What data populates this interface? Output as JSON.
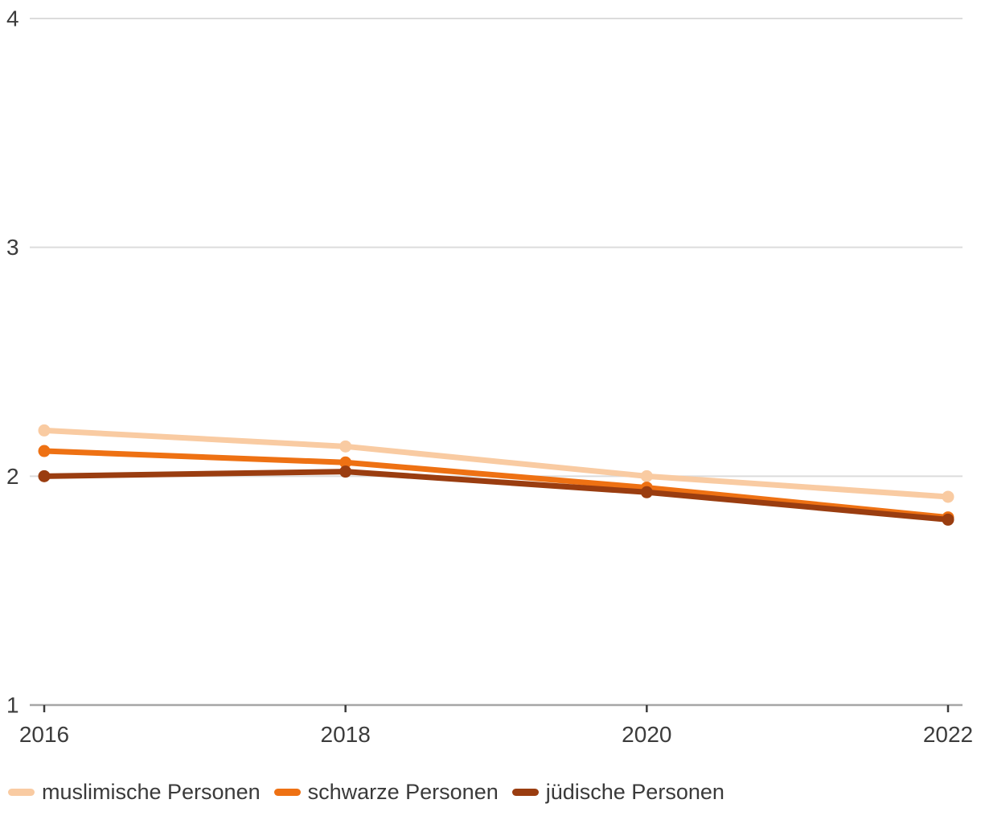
{
  "chart_data": {
    "type": "line",
    "x": [
      "2016",
      "2018",
      "2020",
      "2022"
    ],
    "series": [
      {
        "name": "muslimische Personen",
        "color": "#F9CBA2",
        "values": [
          2.2,
          2.13,
          2.0,
          1.91
        ]
      },
      {
        "name": "schwarze Personen",
        "color": "#EE7113",
        "values": [
          2.11,
          2.06,
          1.95,
          1.82
        ]
      },
      {
        "name": "jüdische Personen",
        "color": "#9A3D10",
        "values": [
          2.0,
          2.02,
          1.93,
          1.81
        ]
      }
    ],
    "title": "",
    "xlabel": "",
    "ylabel": "",
    "ylim": [
      1,
      4
    ],
    "yticks": [
      1,
      2,
      3,
      4
    ],
    "grid": true,
    "legend_position": "bottom",
    "marker": "circle",
    "line_width": 7,
    "marker_radius": 7.5
  },
  "colors": {
    "background": "#FFFFFF",
    "gridline": "#DCDCDC",
    "axis_line": "#A6A6A6",
    "tick": "#3C3C3C",
    "label_text": "#3C3C3C",
    "legend_text": "#3A3A3A"
  }
}
